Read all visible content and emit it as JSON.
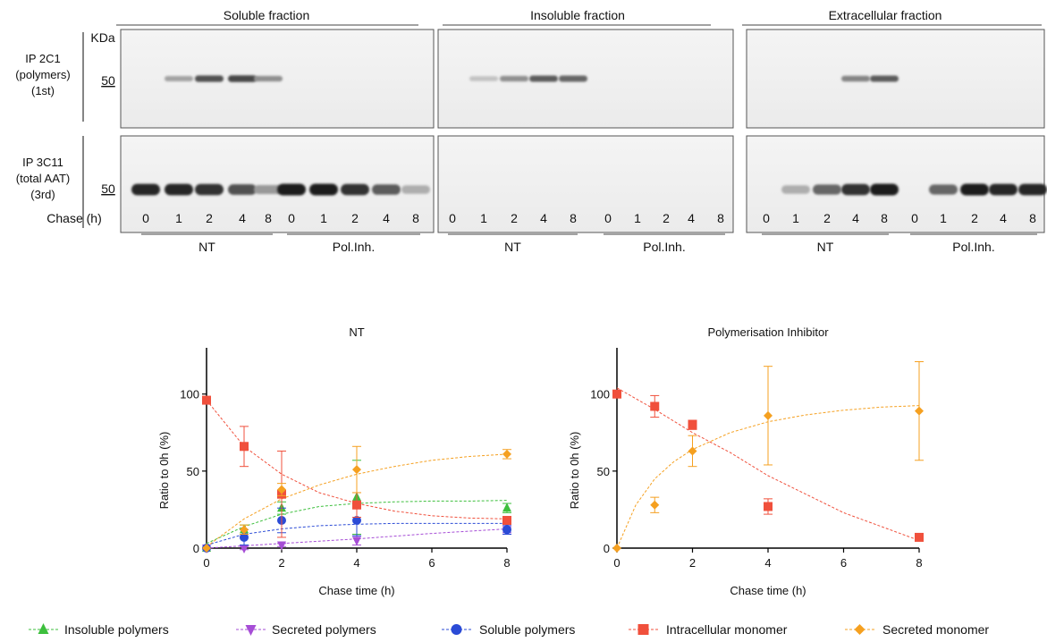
{
  "blots": {
    "columns": [
      {
        "title": "Soluble fraction"
      },
      {
        "title": "Insoluble fraction"
      },
      {
        "title": "Extracellular fraction"
      }
    ],
    "kda_label": "KDa",
    "marker": "50",
    "rows": [
      {
        "label": [
          "IP 2C1",
          "(polymers)",
          "(1st)"
        ]
      },
      {
        "label": [
          "IP 3C11",
          "(total AAT)",
          "(3rd)"
        ]
      }
    ],
    "chase_label": "Chase (h)",
    "lanes": [
      "0",
      "1",
      "2",
      "4",
      "8",
      "0",
      "1",
      "2",
      "4",
      "8"
    ],
    "groups": [
      "NT",
      "Pol.Inh."
    ],
    "band_intensity": {
      "row1": [
        [
          0,
          0.35,
          0.75,
          0.8,
          0.45,
          0,
          0,
          0,
          0,
          0
        ],
        [
          0,
          0.2,
          0.45,
          0.7,
          0.65,
          0,
          0,
          0,
          0,
          0
        ],
        [
          0,
          0,
          0,
          0.5,
          0.7,
          0,
          0,
          0,
          0,
          0
        ]
      ],
      "row2": [
        [
          0.95,
          0.95,
          0.9,
          0.75,
          0.4,
          1,
          1,
          0.9,
          0.7,
          0.3
        ],
        [
          0,
          0,
          0,
          0,
          0,
          0,
          0,
          0,
          0,
          0
        ],
        [
          0,
          0.3,
          0.65,
          0.9,
          1,
          0,
          0.65,
          1,
          0.95,
          0.95
        ]
      ]
    }
  },
  "chart_data": [
    {
      "type": "scatter",
      "title": "NT",
      "xlabel": "Chase time (h)",
      "ylabel": "Ratio to 0h (%)",
      "xlim": [
        0,
        8
      ],
      "ylim": [
        0,
        130
      ],
      "xticks": [
        "0",
        "2",
        "4",
        "6",
        "8"
      ],
      "yticks": [
        "0",
        "50",
        "100"
      ],
      "x": [
        0,
        1,
        2,
        4,
        8
      ],
      "series": [
        {
          "name": "Insoluble polymers",
          "marker": "triangle-up",
          "color": "#3dbf3d",
          "values": [
            0,
            12,
            26,
            33,
            26
          ],
          "errors": [
            0,
            3,
            4,
            24,
            3
          ],
          "fit": [
            [
              0,
              3
            ],
            [
              1,
              14
            ],
            [
              2,
              22
            ],
            [
              3,
              27
            ],
            [
              4,
              29
            ],
            [
              5,
              30
            ],
            [
              6,
              30.5
            ],
            [
              7,
              30.5
            ],
            [
              8,
              31
            ]
          ]
        },
        {
          "name": "Secreted polymers",
          "marker": "triangle-down",
          "color": "#a64dd6",
          "values": [
            0,
            0,
            2,
            5,
            12
          ],
          "errors": [
            0,
            1,
            1,
            3,
            2
          ],
          "fit": [
            [
              0,
              0
            ],
            [
              2,
              3
            ],
            [
              4,
              6
            ],
            [
              6,
              9.5
            ],
            [
              8,
              12.5
            ]
          ]
        },
        {
          "name": "Soluble polymers",
          "marker": "circle",
          "color": "#2b4bd6",
          "values": [
            0,
            7,
            18,
            18,
            12
          ],
          "errors": [
            0,
            5,
            8,
            10,
            3
          ],
          "fit": [
            [
              0,
              2
            ],
            [
              1,
              9
            ],
            [
              2,
              12.5
            ],
            [
              3,
              14.5
            ],
            [
              4,
              15.5
            ],
            [
              5,
              16
            ],
            [
              6,
              16
            ],
            [
              7,
              16
            ],
            [
              8,
              16
            ]
          ]
        },
        {
          "name": "Intracellular monomer",
          "marker": "square",
          "color": "#f0503c",
          "values": [
            96,
            66,
            35,
            28,
            18
          ],
          "errors": [
            0,
            13,
            28,
            8,
            2
          ],
          "fit": [
            [
              0,
              96
            ],
            [
              1,
              66
            ],
            [
              2,
              48
            ],
            [
              3,
              36
            ],
            [
              4,
              29
            ],
            [
              5,
              24
            ],
            [
              6,
              21
            ],
            [
              7,
              19.5
            ],
            [
              8,
              19
            ]
          ]
        },
        {
          "name": "Secreted monomer",
          "marker": "diamond",
          "color": "#f5a020",
          "values": [
            0,
            12,
            38,
            51,
            61
          ],
          "errors": [
            0,
            3,
            4,
            15,
            3
          ],
          "fit": [
            [
              0,
              1
            ],
            [
              1,
              19
            ],
            [
              2,
              32
            ],
            [
              3,
              41
            ],
            [
              4,
              48
            ],
            [
              5,
              53
            ],
            [
              6,
              57
            ],
            [
              7,
              59.5
            ],
            [
              8,
              61
            ]
          ]
        }
      ]
    },
    {
      "type": "scatter",
      "title": "Polymerisation Inhibitor",
      "xlabel": "Chase time (h)",
      "ylabel": "Ratio to 0h (%)",
      "xlim": [
        0,
        8
      ],
      "ylim": [
        0,
        130
      ],
      "xticks": [
        "0",
        "2",
        "4",
        "6",
        "8"
      ],
      "yticks": [
        "0",
        "50",
        "100"
      ],
      "x": [
        0,
        1,
        2,
        4,
        8
      ],
      "series": [
        {
          "name": "Intracellular monomer",
          "marker": "square",
          "color": "#f0503c",
          "values": [
            100,
            92,
            80,
            27,
            7
          ],
          "errors": [
            0,
            7,
            3,
            5,
            1
          ],
          "fit": [
            [
              0,
              104
            ],
            [
              1,
              90
            ],
            [
              2,
              75
            ],
            [
              3,
              62
            ],
            [
              4,
              47
            ],
            [
              5,
              35
            ],
            [
              6,
              23
            ],
            [
              7,
              14
            ],
            [
              8,
              5
            ]
          ]
        },
        {
          "name": "Secreted monomer",
          "marker": "diamond",
          "color": "#f5a020",
          "values": [
            0,
            28,
            63,
            86,
            89
          ],
          "errors": [
            0,
            5,
            10,
            32,
            32
          ],
          "fit": [
            [
              0,
              0
            ],
            [
              0.5,
              28
            ],
            [
              1,
              45
            ],
            [
              1.5,
              56
            ],
            [
              2,
              64
            ],
            [
              3,
              75
            ],
            [
              4,
              82
            ],
            [
              5,
              86.5
            ],
            [
              6,
              89.5
            ],
            [
              7,
              91.5
            ],
            [
              8,
              92.5
            ]
          ]
        }
      ]
    }
  ],
  "legend": [
    {
      "label": "Insoluble polymers",
      "marker": "triangle-up",
      "color": "#3dbf3d"
    },
    {
      "label": "Secreted polymers",
      "marker": "triangle-down",
      "color": "#a64dd6"
    },
    {
      "label": "Soluble polymers",
      "marker": "circle",
      "color": "#2b4bd6"
    },
    {
      "label": "Intracellular monomer",
      "marker": "square",
      "color": "#f0503c"
    },
    {
      "label": "Secreted monomer",
      "marker": "diamond",
      "color": "#f5a020"
    }
  ]
}
